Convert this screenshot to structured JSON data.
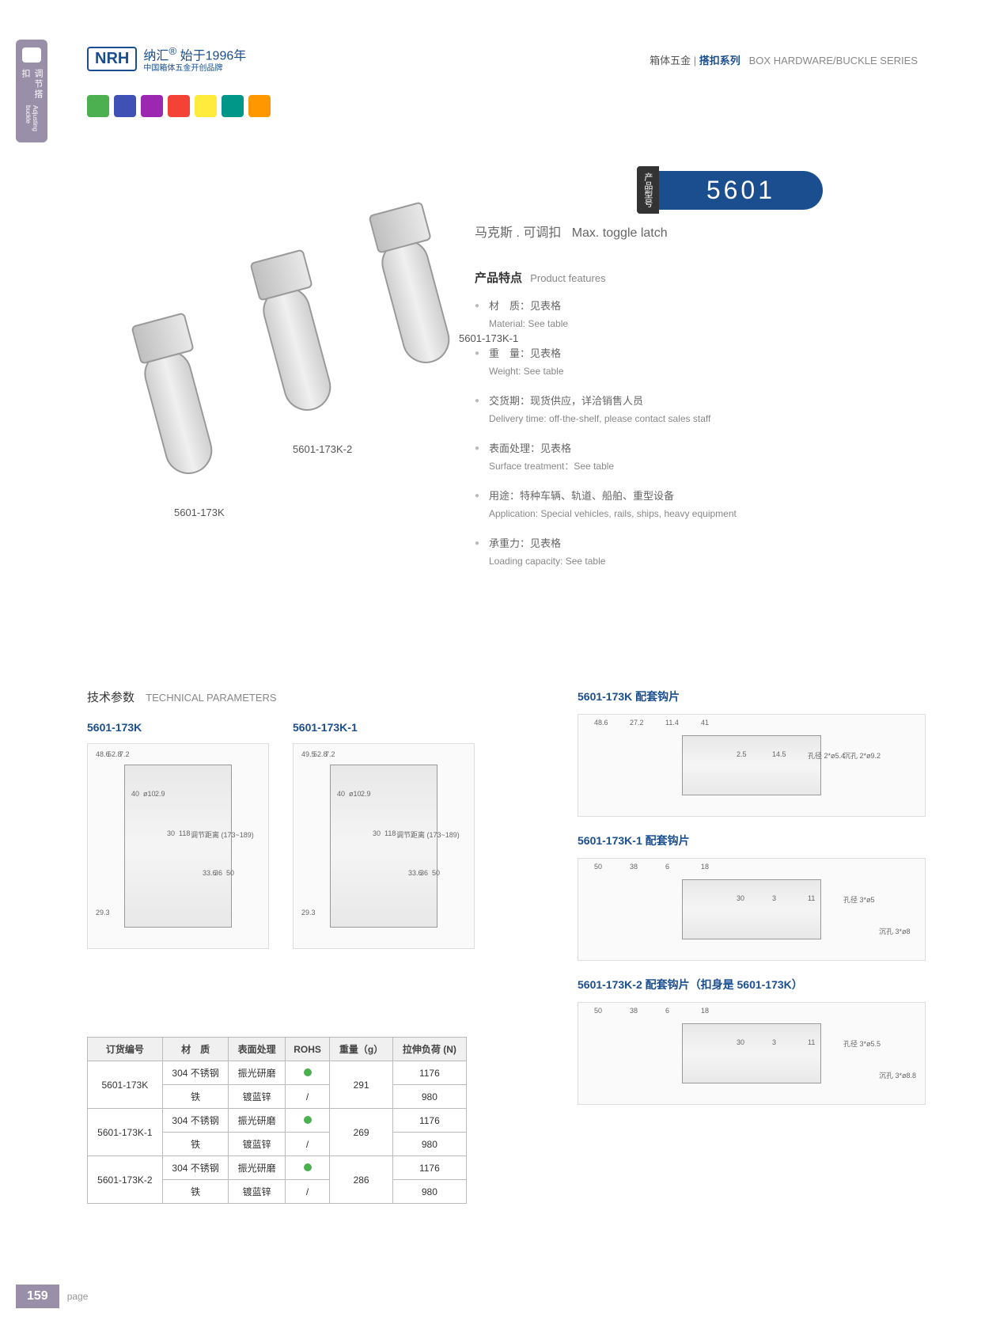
{
  "sidebar": {
    "zh": "调节搭扣",
    "en": "Adjusting buckle"
  },
  "logo": {
    "mark": "NRH",
    "zh": "纳汇",
    "tag": "始于1996年",
    "sub": "中国箱体五金开创品牌"
  },
  "header_right": {
    "main": "箱体五金",
    "accent": "搭扣系列",
    "en": "BOX HARDWARE/BUCKLE SERIES"
  },
  "model": {
    "label": "产品型号",
    "number": "5601"
  },
  "subtitle": {
    "zh": "马克斯 . 可调扣",
    "en": "Max. toggle latch"
  },
  "features_title": {
    "zh": "产品特点",
    "en": "Product features"
  },
  "features": [
    {
      "zh": "材　质：见表格",
      "en": "Material: See table"
    },
    {
      "zh": "重　量：见表格",
      "en": "Weight: See table"
    },
    {
      "zh": "交货期：现货供应，详洽销售人员",
      "en": "Delivery time: off-the-shelf, please contact sales staff"
    },
    {
      "zh": "表面处理：见表格",
      "en": "Surface treatment：See table"
    },
    {
      "zh": "用途：特种车辆、轨道、船舶、重型设备",
      "en": "Application: Special vehicles, rails, ships, heavy equipment"
    },
    {
      "zh": "承重力：见表格",
      "en": "Loading capacity: See table"
    }
  ],
  "product_labels": [
    "5601-173K",
    "5601-173K-2",
    "5601-173K-1"
  ],
  "tech_title": {
    "zh": "技术参数",
    "en": "TECHNICAL PARAMETERS"
  },
  "diagrams": [
    {
      "title": "5601-173K",
      "dims": [
        "48.6",
        "52.8",
        "7.2",
        "40",
        "ø10",
        "2.9",
        "30",
        "118",
        "调节距离 (173~189)",
        "33.6",
        "36",
        "50",
        "29.3"
      ]
    },
    {
      "title": "5601-173K-1",
      "dims": [
        "49.5",
        "52.8",
        "7.2",
        "40",
        "ø10",
        "2.9",
        "30",
        "118",
        "调节距离 (173~189)",
        "33.6",
        "36",
        "50",
        "29.3"
      ]
    }
  ],
  "right_diagrams": [
    {
      "title": "5601-173K 配套钩片",
      "dims": [
        "48.6",
        "27.2",
        "11.4",
        "41",
        "2.5",
        "14.5",
        "孔径 2*ø5.4",
        "沉孔 2*ø9.2"
      ]
    },
    {
      "title": "5601-173K-1 配套钩片",
      "dims": [
        "50",
        "38",
        "6",
        "18",
        "30",
        "3",
        "11",
        "孔径 3*ø5",
        "沉孔 3*ø8"
      ]
    },
    {
      "title": "5601-173K-2 配套钩片（扣身是 5601-173K）",
      "dims": [
        "50",
        "38",
        "6",
        "18",
        "30",
        "3",
        "11",
        "孔径 3*ø5.5",
        "沉孔 3*ø8.8"
      ]
    }
  ],
  "table": {
    "headers": [
      "订货编号",
      "材　质",
      "表面处理",
      "ROHS",
      "重量（g）",
      "拉伸负荷 (N)"
    ],
    "rows": [
      {
        "code": "5601-173K",
        "mat": "304 不锈钢",
        "surf": "振光研磨",
        "rohs": true,
        "weight": "291",
        "load": "1176"
      },
      {
        "code": "",
        "mat": "铁",
        "surf": "镀蓝锌",
        "rohs": false,
        "weight": "",
        "load": "980"
      },
      {
        "code": "5601-173K-1",
        "mat": "304 不锈钢",
        "surf": "振光研磨",
        "rohs": true,
        "weight": "269",
        "load": "1176"
      },
      {
        "code": "",
        "mat": "铁",
        "surf": "镀蓝锌",
        "rohs": false,
        "weight": "",
        "load": "980"
      },
      {
        "code": "5601-173K-2",
        "mat": "304 不锈钢",
        "surf": "振光研磨",
        "rohs": true,
        "weight": "286",
        "load": "1176"
      },
      {
        "code": "",
        "mat": "铁",
        "surf": "镀蓝锌",
        "rohs": false,
        "weight": "",
        "load": "980"
      }
    ]
  },
  "page": {
    "num": "159",
    "label": "page"
  }
}
